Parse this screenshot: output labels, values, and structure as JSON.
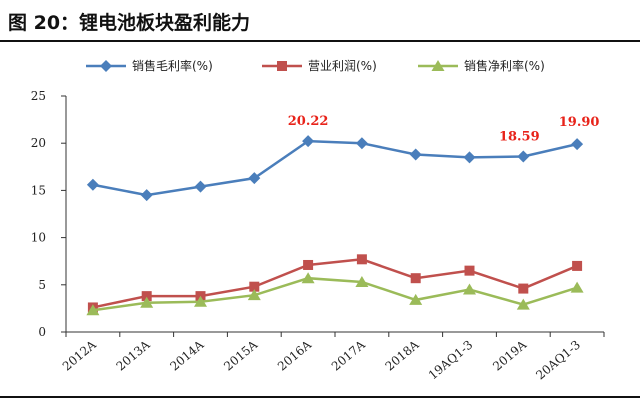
{
  "header": {
    "figure_title": "图 20：锂电池板块盈利能力"
  },
  "chart_data": {
    "type": "line",
    "categories": [
      "2012A",
      "2013A",
      "2014A",
      "2015A",
      "2016A",
      "2017A",
      "2018A",
      "19AQ1-3",
      "2019A",
      "20AQ1-3"
    ],
    "series": [
      {
        "name": "销售毛利率(%)",
        "color": "#4a7ebb",
        "marker": "diamond",
        "values": [
          15.6,
          14.5,
          15.4,
          16.3,
          20.22,
          20.0,
          18.8,
          18.5,
          18.59,
          19.9
        ]
      },
      {
        "name": "营业利润(%)",
        "color": "#c0504d",
        "marker": "square",
        "values": [
          2.6,
          3.8,
          3.8,
          4.8,
          7.1,
          7.7,
          5.7,
          6.5,
          4.6,
          7.0
        ]
      },
      {
        "name": "销售净利率(%)",
        "color": "#9bbb59",
        "marker": "triangle",
        "values": [
          2.3,
          3.1,
          3.2,
          3.9,
          5.7,
          5.3,
          3.4,
          4.5,
          2.9,
          4.7
        ]
      }
    ],
    "yticks": [
      "0",
      "5",
      "10",
      "15",
      "20",
      "25"
    ],
    "ylim": [
      0,
      25
    ],
    "grid": false,
    "legend_position": "top",
    "annotations": [
      {
        "text": "20.22",
        "category_index": 4,
        "value": 20.22
      },
      {
        "text": "18.59",
        "category_index": 8,
        "value": 18.59
      },
      {
        "text": "19.90",
        "category_index": 9,
        "value": 19.9
      }
    ]
  }
}
